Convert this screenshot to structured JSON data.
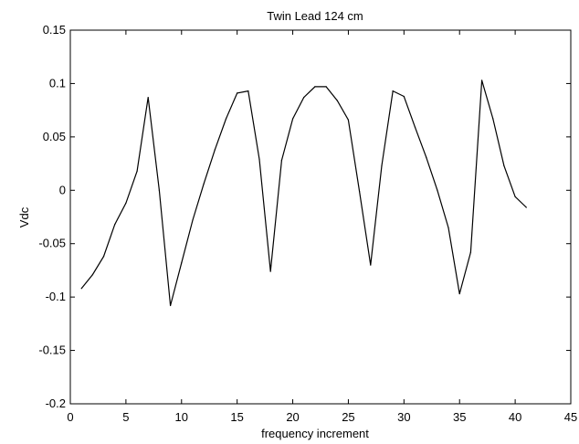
{
  "chart_data": {
    "type": "line",
    "title": "Twin Lead 124 cm",
    "xlabel": "frequency increment",
    "ylabel": "Vdc",
    "xlim": [
      0,
      45
    ],
    "ylim": [
      -0.2,
      0.15
    ],
    "xticks": [
      0,
      5,
      10,
      15,
      20,
      25,
      30,
      35,
      40,
      45
    ],
    "yticks": [
      0.15,
      0.1,
      0.05,
      0,
      -0.05,
      -0.1,
      -0.15,
      -0.2
    ],
    "xtick_labels": [
      "0",
      "5",
      "10",
      "15",
      "20",
      "25",
      "30",
      "35",
      "40",
      "45"
    ],
    "ytick_labels": [
      "0.15",
      "0.1",
      "0.05",
      "0",
      "-0.05",
      "-0.1",
      "-0.15",
      "-0.2"
    ],
    "grid": false,
    "series": [
      {
        "x": [
          1,
          2,
          3,
          4,
          5,
          6,
          7,
          8,
          9,
          10,
          11,
          12,
          13,
          14,
          15,
          16,
          17,
          18,
          19,
          20,
          21,
          22,
          23,
          24,
          25,
          26,
          27,
          28,
          29,
          30,
          31,
          32,
          33,
          34,
          35,
          36,
          37,
          38,
          39,
          40,
          41
        ],
        "y": [
          -0.092,
          -0.079,
          -0.062,
          -0.032,
          -0.012,
          0.018,
          0.087,
          0.0,
          -0.108,
          -0.068,
          -0.028,
          0.006,
          0.038,
          0.067,
          0.091,
          0.093,
          0.029,
          -0.076,
          0.028,
          0.067,
          0.087,
          0.097,
          0.097,
          0.084,
          0.066,
          -0.001,
          -0.07,
          0.023,
          0.093,
          0.088,
          0.059,
          0.031,
          0.0,
          -0.035,
          -0.097,
          -0.058,
          0.103,
          0.067,
          0.023,
          -0.006,
          -0.016
        ]
      }
    ]
  }
}
